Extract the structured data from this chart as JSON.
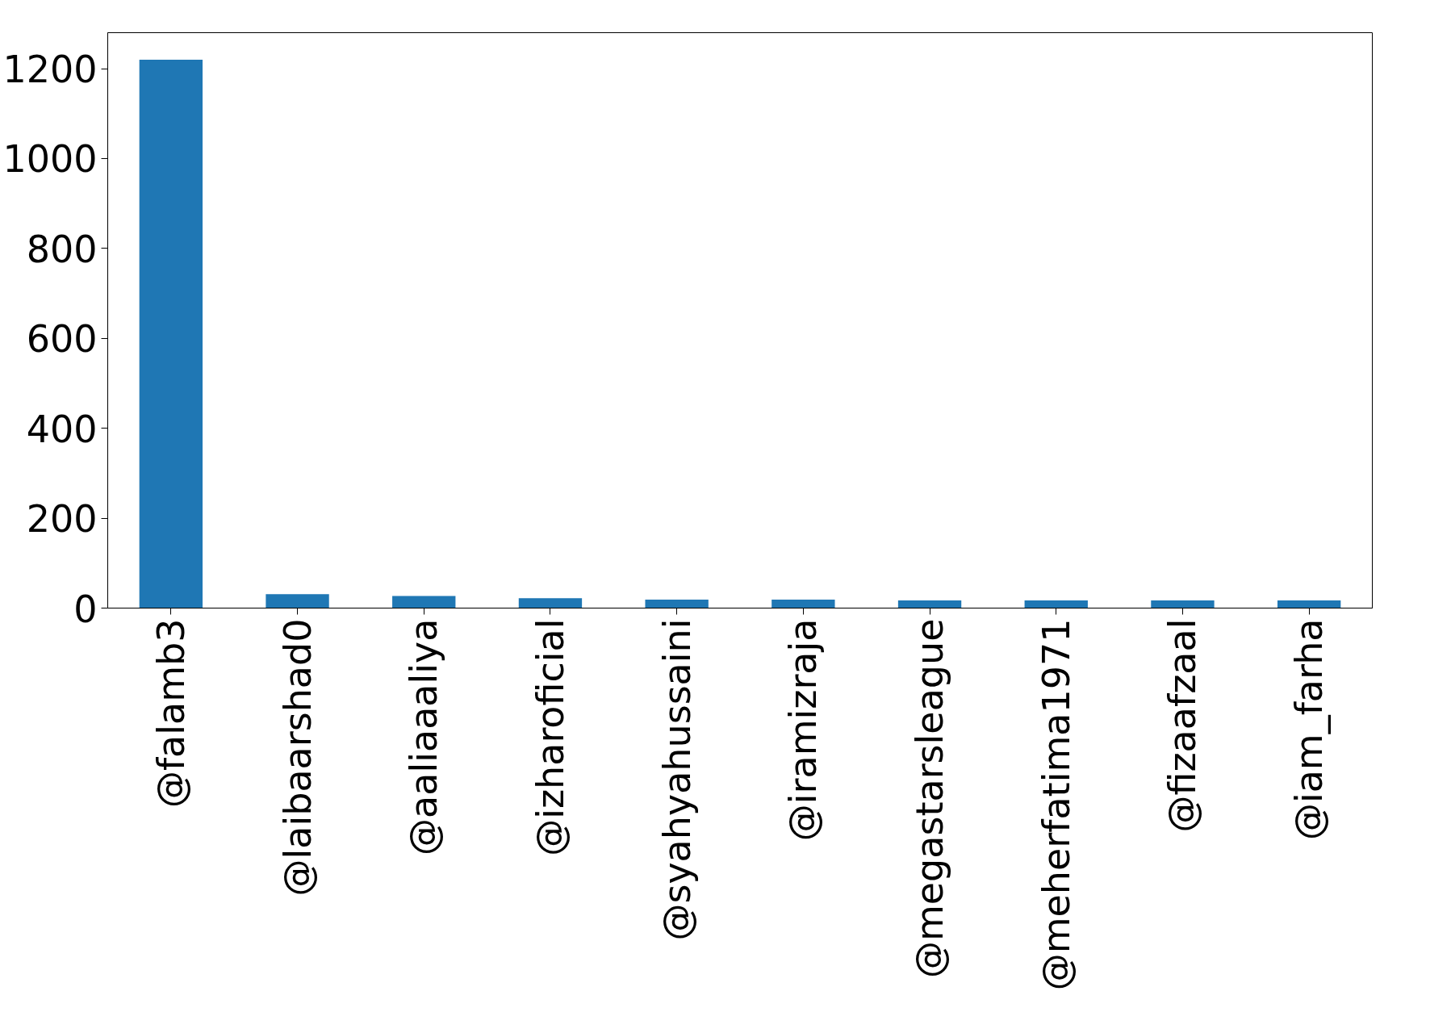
{
  "chart_data": {
    "type": "bar",
    "categories": [
      "@falamb3",
      "@laibaarshad0",
      "@aaliaaaliya",
      "@izharoficial",
      "@syahyahussaini",
      "@iramizraja",
      "@megastarsleague",
      "@meherfatima1971",
      "@fizaafzaal",
      "@iam_farha"
    ],
    "values": [
      1220,
      31,
      27,
      22,
      19,
      19,
      17,
      17,
      17,
      17
    ],
    "color": "#1f77b4",
    "ylim": [
      0,
      1280
    ],
    "yticks": [
      0,
      200,
      400,
      600,
      800,
      1000,
      1200
    ],
    "grid": false
  }
}
